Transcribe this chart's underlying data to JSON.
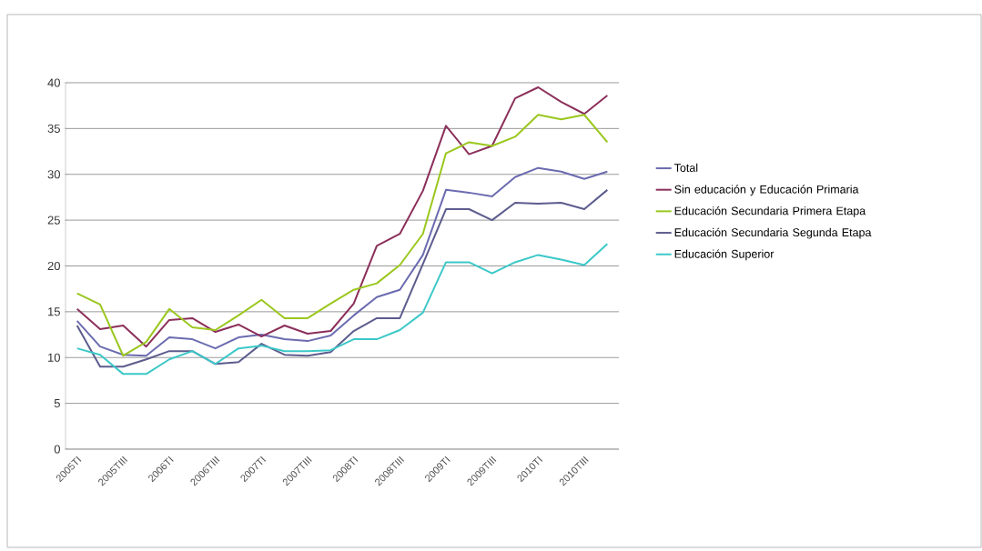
{
  "chart_data": {
    "type": "line",
    "categories": [
      "2005TI",
      null,
      "2005TIII",
      null,
      "2006TI",
      null,
      "2006TIII",
      null,
      "2007TI",
      null,
      "2007TIII",
      null,
      "2008TI",
      null,
      "2008TIII",
      null,
      "2009TI",
      null,
      "2009TIII",
      null,
      "2010TI",
      null,
      "2010TIII",
      null
    ],
    "series": [
      {
        "name": "Total",
        "color": "#6b6bb0",
        "values": [
          14.0,
          11.2,
          10.3,
          10.2,
          12.2,
          12.0,
          11.0,
          12.2,
          12.5,
          12.0,
          11.8,
          12.4,
          14.6,
          16.6,
          17.4,
          21.2,
          28.3,
          28.0,
          27.6,
          29.7,
          30.7,
          30.3,
          29.5,
          30.3
        ]
      },
      {
        "name": "Sin educación y Educación Primaria",
        "color": "#8b2f5a",
        "values": [
          15.3,
          13.1,
          13.5,
          11.2,
          14.1,
          14.3,
          12.8,
          13.6,
          12.3,
          13.5,
          12.6,
          12.9,
          15.9,
          22.2,
          23.5,
          28.2,
          35.3,
          32.2,
          33.1,
          38.3,
          39.5,
          37.9,
          36.6,
          38.6
        ]
      },
      {
        "name": "Educación Secundaria Primera Etapa",
        "color": "#9ac71e",
        "values": [
          17.0,
          15.8,
          10.2,
          11.7,
          15.3,
          13.3,
          13.0,
          14.6,
          16.3,
          14.3,
          14.3,
          15.9,
          17.4,
          18.1,
          20.1,
          23.5,
          32.3,
          33.5,
          33.1,
          34.1,
          36.5,
          36.0,
          36.5,
          33.5
        ]
      },
      {
        "name": "Educación Secundaria Segunda Etapa",
        "color": "#5c5c8e",
        "values": [
          13.5,
          9.0,
          9.0,
          9.8,
          10.7,
          10.7,
          9.3,
          9.5,
          11.5,
          10.3,
          10.2,
          10.6,
          12.9,
          14.3,
          14.3,
          20.2,
          26.2,
          26.2,
          25.0,
          26.9,
          26.8,
          26.9,
          26.2,
          28.3
        ]
      },
      {
        "name": "Educación Superior",
        "color": "#3cc8c8",
        "values": [
          11.0,
          10.3,
          8.2,
          8.2,
          9.8,
          10.7,
          9.3,
          11.0,
          11.3,
          10.7,
          10.7,
          10.8,
          12.0,
          12.0,
          13.0,
          14.9,
          20.4,
          20.4,
          19.2,
          20.4,
          21.2,
          20.7,
          20.1,
          22.4
        ]
      }
    ],
    "ylim": [
      0,
      40
    ],
    "yticks": [
      0,
      5,
      10,
      15,
      20,
      25,
      30,
      35,
      40
    ],
    "grid": "y",
    "legend": "right",
    "marker": "none",
    "line_style": "solid"
  }
}
